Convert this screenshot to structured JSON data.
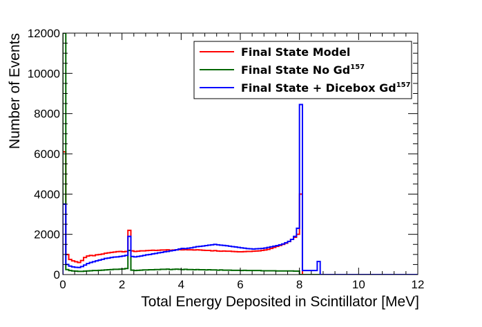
{
  "chart_data": {
    "type": "line",
    "title": "",
    "xlabel": "Total Energy Deposited in Scintillator [MeV]",
    "ylabel": "Number of Events",
    "xlim": [
      0,
      12
    ],
    "ylim": [
      0,
      12000
    ],
    "x_ticks": [
      0,
      2,
      4,
      6,
      8,
      10,
      12
    ],
    "y_ticks": [
      0,
      2000,
      4000,
      6000,
      8000,
      10000,
      12000
    ],
    "grid": false,
    "legend_placement": "top-right",
    "bin_width": 0.1,
    "series": [
      {
        "name": "Final State Model",
        "label_text": "Final State Model",
        "label_sup": "",
        "color": "#ff0000",
        "values": [
          6100,
          1000,
          750,
          680,
          640,
          600,
          700,
          850,
          920,
          950,
          940,
          980,
          1000,
          1020,
          1060,
          1080,
          1100,
          1120,
          1140,
          1150,
          1130,
          1150,
          2200,
          1180,
          1150,
          1160,
          1180,
          1180,
          1190,
          1200,
          1210,
          1200,
          1210,
          1220,
          1220,
          1230,
          1210,
          1220,
          1230,
          1240,
          1230,
          1240,
          1230,
          1230,
          1220,
          1230,
          1220,
          1210,
          1200,
          1200,
          1180,
          1190,
          1170,
          1160,
          1170,
          1160,
          1160,
          1150,
          1140,
          1130,
          1130,
          1140,
          1150,
          1150,
          1160,
          1170,
          1180,
          1200,
          1220,
          1250,
          1300,
          1350,
          1400,
          1450,
          1500,
          1560,
          1640,
          1750,
          1850,
          2000,
          4000,
          0,
          0,
          0,
          0,
          0,
          0,
          0,
          0,
          0,
          0,
          0,
          0,
          0,
          0,
          0,
          0,
          0,
          0,
          0,
          0,
          0,
          0,
          0,
          0,
          0,
          0,
          0,
          0,
          0,
          0,
          0,
          0,
          0,
          0,
          0,
          0,
          0,
          0,
          0
        ]
      },
      {
        "name": "Final State No Gd157",
        "label_text": "Final State No Gd",
        "label_sup": "157",
        "color": "#006600",
        "values": [
          12000,
          250,
          200,
          180,
          170,
          160,
          160,
          170,
          180,
          190,
          200,
          200,
          210,
          220,
          230,
          240,
          250,
          260,
          260,
          270,
          280,
          300,
          1200,
          220,
          200,
          210,
          220,
          230,
          230,
          240,
          240,
          250,
          250,
          260,
          260,
          270,
          250,
          260,
          270,
          260,
          250,
          260,
          250,
          250,
          240,
          250,
          240,
          240,
          230,
          240,
          230,
          230,
          220,
          230,
          220,
          220,
          220,
          210,
          210,
          210,
          200,
          210,
          200,
          200,
          200,
          200,
          200,
          190,
          190,
          190,
          190,
          190,
          180,
          180,
          180,
          180,
          180,
          180,
          170,
          170,
          0,
          0,
          0,
          0,
          0,
          0,
          0,
          0,
          0,
          0,
          0,
          0,
          0,
          0,
          0,
          0,
          0,
          0,
          0,
          0,
          0,
          0,
          0,
          0,
          0,
          0,
          0,
          0,
          0,
          0,
          0,
          0,
          0,
          0,
          0,
          0,
          0,
          0,
          0,
          0
        ]
      },
      {
        "name": "Final State + Dicebox Gd157",
        "label_text": "Final State + Dicebox Gd",
        "label_sup": "157",
        "color": "#0000ff",
        "values": [
          3500,
          500,
          420,
          380,
          360,
          350,
          400,
          470,
          550,
          600,
          640,
          680,
          720,
          760,
          800,
          820,
          850,
          870,
          880,
          900,
          920,
          950,
          1900,
          900,
          880,
          900,
          920,
          950,
          980,
          1000,
          1030,
          1050,
          1080,
          1100,
          1130,
          1150,
          1180,
          1200,
          1230,
          1270,
          1300,
          1290,
          1310,
          1330,
          1360,
          1390,
          1400,
          1420,
          1440,
          1460,
          1480,
          1500,
          1480,
          1460,
          1450,
          1430,
          1410,
          1390,
          1370,
          1350,
          1330,
          1310,
          1290,
          1280,
          1270,
          1280,
          1290,
          1300,
          1320,
          1350,
          1380,
          1410,
          1440,
          1480,
          1520,
          1580,
          1650,
          1750,
          1900,
          2300,
          8450,
          200,
          200,
          200,
          200,
          200,
          650,
          0,
          0,
          0,
          0,
          0,
          0,
          0,
          0,
          0,
          0,
          0,
          0,
          0,
          0,
          0,
          0,
          0,
          0,
          0,
          0,
          0,
          0,
          0,
          0,
          0,
          0,
          0,
          0,
          0,
          0,
          0,
          0,
          0
        ]
      }
    ]
  }
}
